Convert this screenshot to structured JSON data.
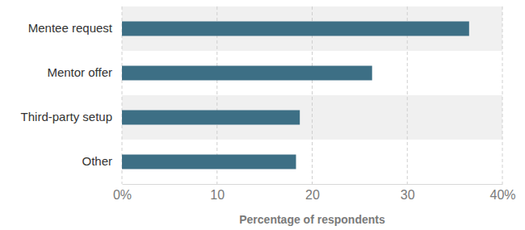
{
  "chart_data": {
    "type": "bar",
    "orientation": "horizontal",
    "categories": [
      "Mentee request",
      "Mentor offer",
      "Third-party setup",
      "Other"
    ],
    "values": [
      36.5,
      26.3,
      18.7,
      18.3
    ],
    "color": "#3d6f85",
    "x_label": "Percentage of respondents",
    "xlim": [
      0,
      40
    ],
    "xticks": [
      {
        "value": 0,
        "label": "0%"
      },
      10,
      20,
      30,
      {
        "value": 40,
        "label": "40%"
      }
    ],
    "grid": true
  }
}
